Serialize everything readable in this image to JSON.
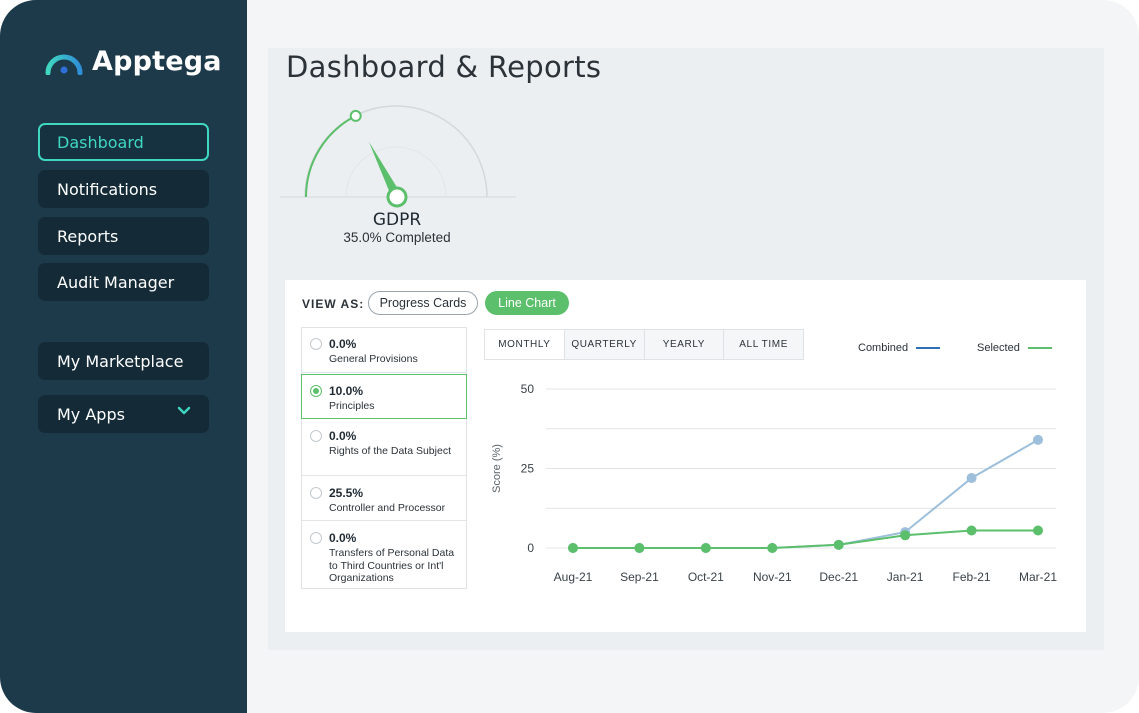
{
  "app": {
    "name": "Apptega"
  },
  "colors": {
    "sidebar": "#1d3a4a",
    "accent": "#3fd7c0",
    "green": "#5bbf6b",
    "blue": "#2f6fb3",
    "light_blue": "#9dbfdb"
  },
  "sidebar": {
    "items": [
      {
        "label": "Dashboard",
        "active": true
      },
      {
        "label": "Notifications"
      },
      {
        "label": "Reports"
      },
      {
        "label": "Audit Manager"
      },
      {
        "label": "My Marketplace"
      },
      {
        "label": "My Apps",
        "icon": "chevron-down-icon"
      }
    ]
  },
  "page": {
    "title": "Dashboard & Reports"
  },
  "gauge": {
    "framework": "GDPR",
    "completed_text": "35.0% Completed",
    "value": 35.0
  },
  "view_as": {
    "label": "VIEW AS:",
    "options": [
      {
        "label": "Progress Cards",
        "active": false
      },
      {
        "label": "Line Chart",
        "active": true
      }
    ]
  },
  "categories": [
    {
      "pct": "0.0%",
      "name": "General Provisions",
      "selected": false
    },
    {
      "pct": "10.0%",
      "name": "Principles",
      "selected": true
    },
    {
      "pct": "0.0%",
      "name": "Rights of the Data Subject",
      "selected": false
    },
    {
      "pct": "25.5%",
      "name": "Controller and Processor",
      "selected": false
    },
    {
      "pct": "0.0%",
      "name": "Transfers of Personal Data to Third Countries or Int'l Organizations",
      "selected": false
    }
  ],
  "period_tabs": [
    {
      "label": "MONTHLY",
      "active": true
    },
    {
      "label": "QUARTERLY",
      "active": false
    },
    {
      "label": "YEARLY",
      "active": false
    },
    {
      "label": "ALL TIME",
      "active": false
    }
  ],
  "legend": {
    "combined": "Combined",
    "selected": "Selected"
  },
  "chart_data": {
    "type": "line",
    "categories": [
      "Aug-21",
      "Sep-21",
      "Oct-21",
      "Nov-21",
      "Dec-21",
      "Jan-21",
      "Feb-21",
      "Mar-21"
    ],
    "ylabel": "Score (%)",
    "ylim": [
      0,
      50
    ],
    "yticks": [
      0,
      25,
      50
    ],
    "grid": true,
    "legend_position": "top-right",
    "series": [
      {
        "name": "Combined",
        "values": [
          0,
          0,
          0,
          0,
          1,
          5,
          22,
          34
        ]
      },
      {
        "name": "Selected",
        "values": [
          0,
          0,
          0,
          0,
          1,
          4,
          5.5,
          5.5
        ]
      }
    ]
  }
}
